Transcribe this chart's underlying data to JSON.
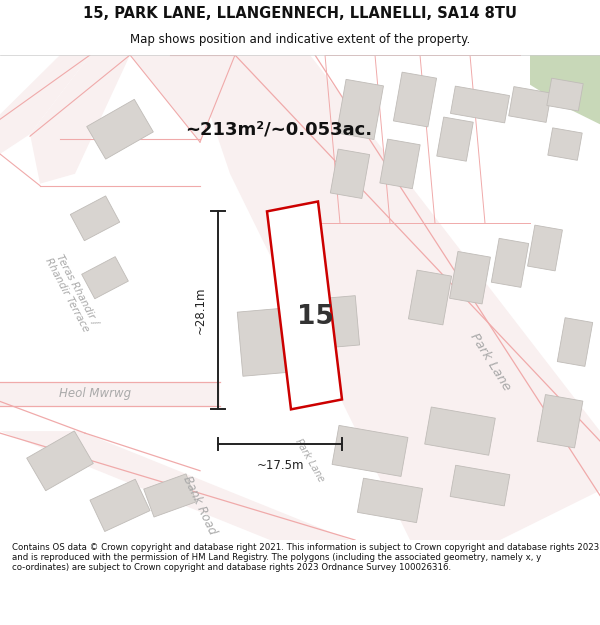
{
  "title_line1": "15, PARK LANE, LLANGENNECH, LLANELLI, SA14 8TU",
  "title_line2": "Map shows position and indicative extent of the property.",
  "area_text": "~213m²/~0.053ac.",
  "number_label": "15",
  "dim_height": "~28.1m",
  "dim_width": "~17.5m",
  "footer_text": "Contains OS data © Crown copyright and database right 2021. This information is subject to Crown copyright and database rights 2023 and is reproduced with the permission of HM Land Registry. The polygons (including the associated geometry, namely x, y co-ordinates) are subject to Crown copyright and database rights 2023 Ordnance Survey 100026316.",
  "map_bg": "#ffffff",
  "road_line_color": "#f0aaaa",
  "road_fill_color": "#f9f0f0",
  "building_color": "#d8d4d0",
  "building_edge": "#c0bcb8",
  "plot_fill": "#ffffff",
  "plot_edge": "#cc0000",
  "header_bg": "#ffffff",
  "footer_bg": "#ffffff",
  "label_color": "#aaaaaa",
  "dim_color": "#222222",
  "green_color": "#c8d8b8"
}
